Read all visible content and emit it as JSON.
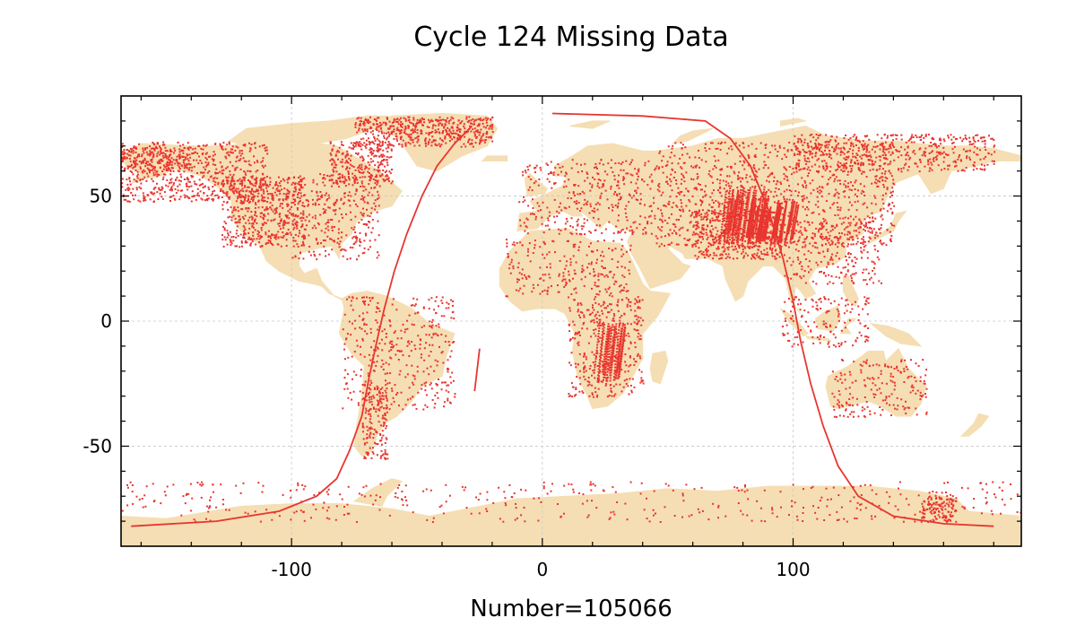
{
  "title": "Cycle 124 Missing Data",
  "xlabel": "Number=105066",
  "colors": {
    "land": "#f5deb3",
    "missing": "#e8352f",
    "grid": "#c8c8c8",
    "frame": "#000000"
  },
  "chart_data": {
    "type": "scatter",
    "title": "Cycle 124 Missing Data",
    "xlabel": "Number=105066",
    "ylabel": "",
    "xlim": [
      -168,
      191
    ],
    "ylim": [
      -90,
      90
    ],
    "xticks": [
      -100,
      0,
      100
    ],
    "yticks": [
      -50,
      0,
      50
    ],
    "x_tick_labels": [
      "-100",
      "0",
      "100"
    ],
    "y_tick_labels": [
      "-50",
      "0",
      "50"
    ],
    "grid": true,
    "count": 105066,
    "series": [
      {
        "kind": "track",
        "points": [
          [
            -164,
            -82
          ],
          [
            -130,
            -80
          ],
          [
            -105,
            -76
          ],
          [
            -90,
            -70
          ],
          [
            -82,
            -63
          ],
          [
            -77,
            -52
          ],
          [
            -72,
            -38
          ],
          [
            -69,
            -22
          ],
          [
            -66,
            -8
          ],
          [
            -63,
            5
          ],
          [
            -59,
            20
          ],
          [
            -54,
            35
          ],
          [
            -48,
            50
          ],
          [
            -42,
            62
          ],
          [
            -35,
            71
          ],
          [
            -28,
            78
          ]
        ]
      },
      {
        "kind": "track",
        "points": [
          [
            4,
            83
          ],
          [
            40,
            82
          ],
          [
            65,
            80
          ],
          [
            75,
            73
          ],
          [
            83,
            62
          ],
          [
            90,
            45
          ],
          [
            96,
            25
          ],
          [
            100,
            8
          ],
          [
            103,
            -8
          ],
          [
            107,
            -25
          ],
          [
            112,
            -42
          ],
          [
            118,
            -58
          ],
          [
            126,
            -70
          ],
          [
            140,
            -78
          ],
          [
            160,
            -81
          ],
          [
            180,
            -82
          ]
        ]
      },
      {
        "kind": "track",
        "points": [
          [
            -25,
            -11
          ],
          [
            -27,
            -28
          ]
        ]
      },
      {
        "kind": "scatter-region",
        "label_regions": [
          "North America west",
          "North America central",
          "Greenland",
          "Canadian Arctic",
          "South America",
          "Europe",
          "Sahara",
          "Central Africa",
          "Southern Africa",
          "Asia",
          "Siberia",
          "Southeast Asia",
          "Australia",
          "Antarctica coast"
        ]
      }
    ]
  }
}
